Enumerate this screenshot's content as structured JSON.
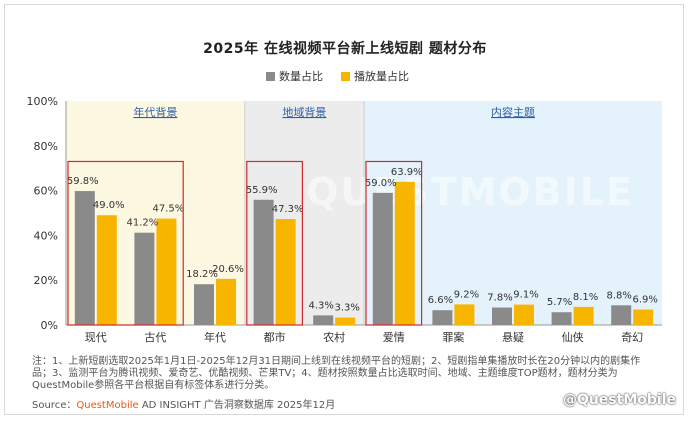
{
  "chart_data": {
    "type": "bar",
    "title": "2025年 在线视频平台新上线短剧 题材分布",
    "categories": [
      "现代",
      "古代",
      "年代",
      "都市",
      "农村",
      "爱情",
      "罪案",
      "悬疑",
      "仙侠",
      "奇幻"
    ],
    "series": [
      {
        "name": "数量占比",
        "values": [
          59.8,
          41.2,
          18.2,
          55.9,
          4.3,
          59.0,
          6.6,
          7.8,
          5.7,
          8.8
        ],
        "labels": [
          "59.8%",
          "41.2%",
          "18.2%",
          "55.9%",
          "4.3%",
          "59.0%",
          "6.6%",
          "7.8%",
          "5.7%",
          "8.8%"
        ]
      },
      {
        "name": "播放量占比",
        "values": [
          49.0,
          47.5,
          20.6,
          47.3,
          3.3,
          63.9,
          9.2,
          9.1,
          8.1,
          6.9
        ],
        "labels": [
          "49.0%",
          "47.5%",
          "20.6%",
          "47.3%",
          "3.3%",
          "63.9%",
          "9.2%",
          "9.1%",
          "8.1%",
          "6.9%"
        ]
      }
    ],
    "ylim": [
      0,
      100
    ],
    "yticks": [
      "0%",
      "20%",
      "40%",
      "60%",
      "80%",
      "100%"
    ],
    "groups": [
      {
        "label": "年代背景",
        "start": 0,
        "end": 2,
        "color": "#fdf8e1"
      },
      {
        "label": "地域背景",
        "start": 3,
        "end": 4,
        "color": "#ececec"
      },
      {
        "label": "内容主题",
        "start": 5,
        "end": 9,
        "color": "#e3f2fb"
      }
    ],
    "highlight_label_color": "#2e5fa5",
    "highlights": [
      [
        0,
        1
      ],
      [
        3,
        3
      ],
      [
        5,
        5
      ]
    ],
    "colors": {
      "count": "#8a8a8a",
      "play": "#f7b500",
      "highlight_border": "#d02a2a"
    },
    "notes": "注：1、上新短剧选取2025年1月1日-2025年12月31日期间上线到在线视频平台的短剧；2、短剧指单集播放时长在20分钟以内的剧集作品；3、监测平台为腾讯视频、爱奇艺、优酷视频、芒果TV；4、题材按照数量占比选取时间、地域、主题维度TOP题材，题材分类为QuestMobile参照各平台根据自有标签体系进行分类。",
    "source_prefix": "Source：",
    "source_brand": "QuestMobile",
    "source_rest": " AD INSIGHT 广告洞察数据库 2025年12月",
    "watermark_text": "QUESTMOBILE",
    "watermark_corner": "@QuestMobile"
  }
}
